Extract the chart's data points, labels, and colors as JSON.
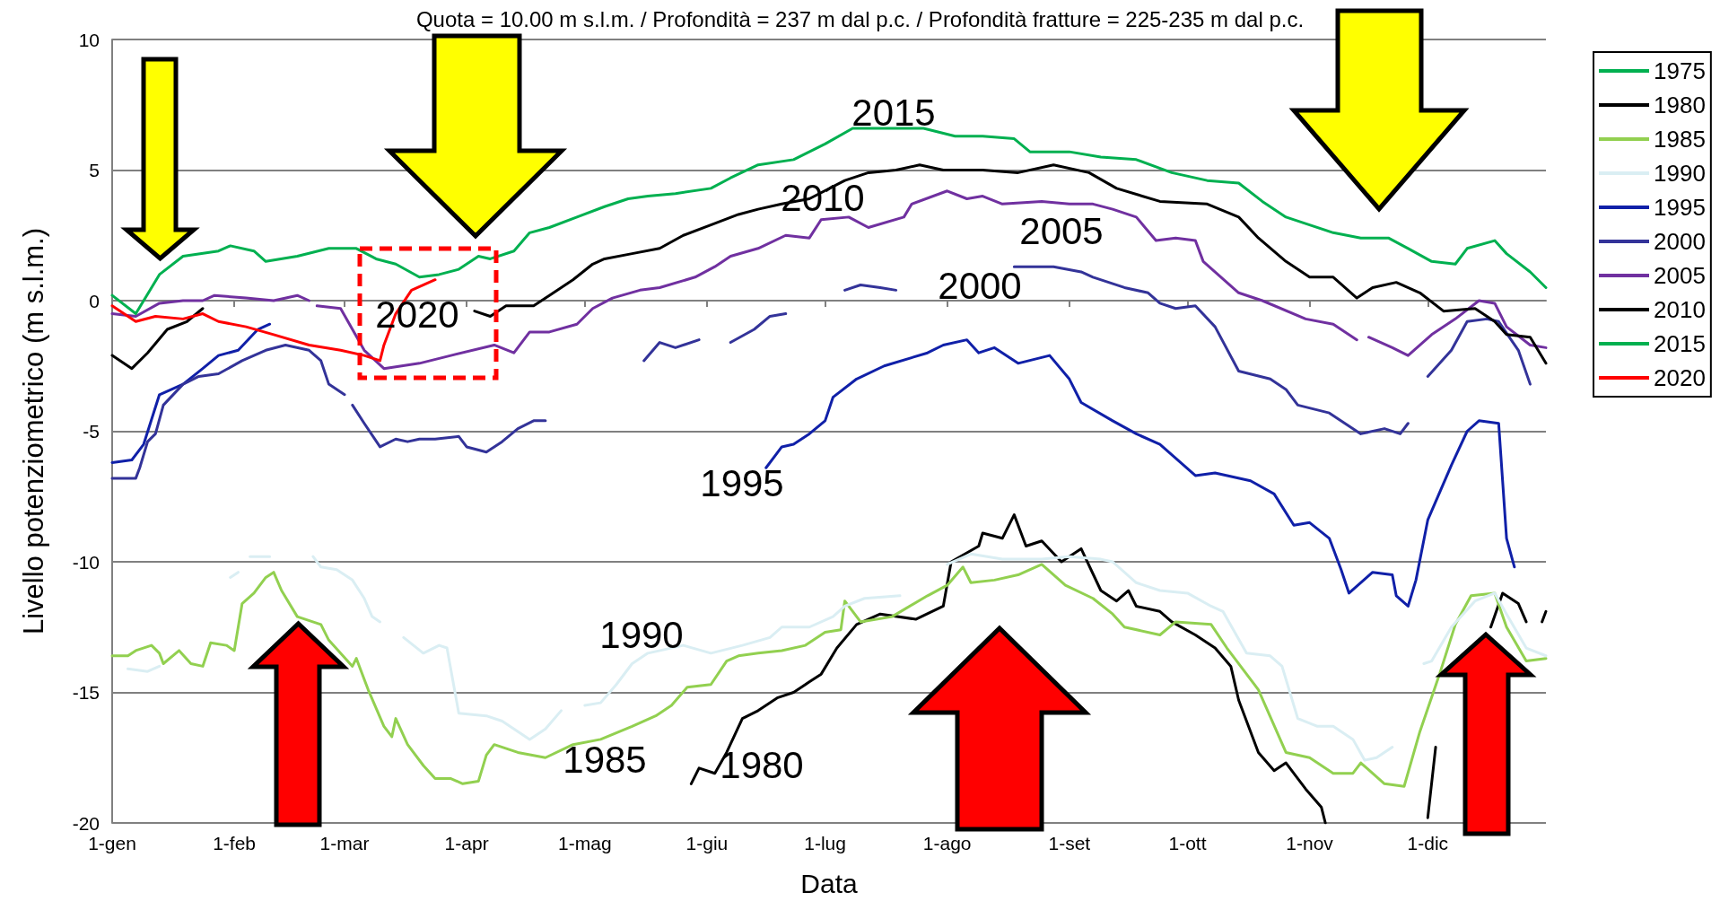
{
  "chart_data": {
    "type": "line",
    "title": "Quota = 10.00 m s.l.m. / Profondità = 237 m dal p.c. / Profondità fratture = 225-235 m dal p.c.",
    "xlabel": "Data",
    "ylabel": "Livello potenziometrico (m s.l.m.)",
    "xlim": [
      "--01-01",
      "--12-31"
    ],
    "xticks": [
      {
        "value": "--01-01",
        "label": "1-gen"
      },
      {
        "value": "--02-01",
        "label": "1-feb"
      },
      {
        "value": "--03-01",
        "label": "1-mar"
      },
      {
        "value": "--04-01",
        "label": "1-apr"
      },
      {
        "value": "--05-01",
        "label": "1-mag"
      },
      {
        "value": "--06-01",
        "label": "1-giu"
      },
      {
        "value": "--07-01",
        "label": "1-lug"
      },
      {
        "value": "--08-01",
        "label": "1-ago"
      },
      {
        "value": "--09-01",
        "label": "1-set"
      },
      {
        "value": "--10-01",
        "label": "1-ott"
      },
      {
        "value": "--11-01",
        "label": "1-nov"
      },
      {
        "value": "--12-01",
        "label": "1-dic"
      }
    ],
    "ylim": [
      -20,
      10
    ],
    "yticks": [
      -20,
      -15,
      -10,
      -5,
      0,
      5,
      10
    ],
    "grid": "y",
    "legend": "right",
    "series": [
      {
        "name": "1975",
        "color": "#00b050"
      },
      {
        "name": "1980",
        "color": "#000000",
        "x": [
          "--05-28",
          "--05-30",
          "--06-03",
          "--06-06",
          "--06-10",
          "--06-14",
          "--06-19",
          "--06-23",
          "--06-27",
          "--06-30",
          "--07-04",
          "--07-09",
          "--07-15",
          "--07-24",
          "--07-31",
          "--08-02",
          "--08-09",
          "--08-10",
          "--08-15",
          "--08-18",
          "--08-21",
          "--08-25",
          "--08-30",
          "--09-04",
          "--09-09",
          "--09-13",
          "--09-16",
          "--09-18",
          "--09-24",
          "--09-27",
          "--10-03",
          "--10-08",
          "--10-12",
          "--10-14",
          "--10-19",
          "--10-23",
          "--10-26",
          "--10-31",
          "--11-04",
          "--11-05",
          "--11-17",
          "--12-01",
          "--12-03",
          "--12-07",
          "--12-17",
          "--12-20",
          "--12-24",
          "--12-26",
          "--12-28",
          "--12-30",
          "--12-31"
        ],
        "values": [
          -18.5,
          -17.9,
          -18.1,
          -17.3,
          -16.0,
          -15.7,
          -15.2,
          -15.0,
          -14.6,
          -14.3,
          -13.3,
          -12.4,
          -12.0,
          -12.2,
          -11.7,
          -10.0,
          -9.4,
          -8.9,
          -9.1,
          -8.2,
          -9.4,
          -9.2,
          -10.0,
          -9.5,
          -11.1,
          -11.5,
          -11.1,
          -11.7,
          -11.9,
          -12.3,
          -12.8,
          -13.3,
          -14.0,
          -15.3,
          -17.3,
          -18.0,
          -17.7,
          -18.7,
          -19.4,
          -20.0,
          null,
          -19.8,
          -17.1,
          null,
          -12.5,
          -11.2,
          -11.6,
          -12.3,
          null,
          -12.3,
          -11.9
        ]
      },
      {
        "name": "1985",
        "color": "#92d050",
        "x": [
          "--01-01",
          "--01-05",
          "--01-07",
          "--01-11",
          "--01-13",
          "--01-14",
          "--01-18",
          "--01-21",
          "--01-24",
          "--01-26",
          "--01-30",
          "--02-01",
          "--02-03",
          "--02-06",
          "--02-09",
          "--02-11",
          "--02-13",
          "--02-17",
          "--02-23",
          "--02-25",
          "--03-03",
          "--03-04",
          "--03-07",
          "--03-11",
          "--03-13",
          "--03-14",
          "--03-17",
          "--03-21",
          "--03-24",
          "--03-28",
          "--03-31",
          "--04-04",
          "--04-06",
          "--04-08",
          "--04-14",
          "--04-21",
          "--04-28",
          "--05-05",
          "--05-13",
          "--05-19",
          "--05-23",
          "--05-27",
          "--06-02",
          "--06-06",
          "--06-09",
          "--06-14",
          "--06-20",
          "--06-26",
          "--07-01",
          "--07-05",
          "--07-06",
          "--07-10",
          "--07-18",
          "--07-27",
          "--08-01",
          "--08-05",
          "--08-07",
          "--08-13",
          "--08-19",
          "--08-25",
          "--08-31",
          "--09-07",
          "--09-12",
          "--09-15",
          "--09-24",
          "--09-28",
          "--10-07",
          "--10-11",
          "--10-19",
          "--10-26",
          "--11-01",
          "--11-07",
          "--11-12",
          "--11-14",
          "--11-20",
          "--11-25",
          "--11-29",
          "--12-04",
          "--12-08",
          "--12-12",
          "--12-18",
          "--12-21",
          "--12-26",
          "--12-31"
        ],
        "values": [
          -13.6,
          -13.6,
          -13.4,
          -13.2,
          -13.5,
          -13.9,
          -13.4,
          -13.9,
          -14.0,
          -13.1,
          -13.2,
          -13.4,
          -11.6,
          -11.2,
          -10.6,
          -10.4,
          -11.1,
          -12.1,
          -12.4,
          -13.0,
          -14.0,
          -13.7,
          -14.9,
          -16.3,
          -16.7,
          -16.0,
          -17.0,
          -17.8,
          -18.3,
          -18.3,
          -18.5,
          -18.4,
          -17.4,
          -17.0,
          -17.3,
          -17.5,
          -17.0,
          -16.8,
          -16.3,
          -15.9,
          -15.5,
          -14.8,
          -14.7,
          -13.8,
          -13.6,
          -13.5,
          -13.4,
          -13.2,
          -12.7,
          -12.6,
          -11.5,
          -12.3,
          -12.1,
          -11.3,
          -10.9,
          -10.2,
          -10.8,
          -10.7,
          -10.5,
          -10.1,
          -10.9,
          -11.4,
          -12.0,
          -12.5,
          -12.8,
          -12.3,
          -12.4,
          -13.3,
          -14.9,
          -17.3,
          -17.5,
          -18.1,
          -18.1,
          -17.7,
          -18.5,
          -18.6,
          -16.5,
          -14.3,
          -12.4,
          -11.3,
          -11.2,
          -12.5,
          -13.8,
          -13.7
        ]
      },
      {
        "name": "1990",
        "color": "#daeef3",
        "x": [
          "--01-05",
          "--01-10",
          "--01-13",
          "--01-14",
          "--01-31",
          "--02-02",
          "--02-03",
          "--02-05",
          "--02-10",
          "--02-11",
          "--02-21",
          "--02-23",
          "--02-27",
          "--03-03",
          "--03-06",
          "--03-08",
          "--03-10",
          "--03-11",
          "--03-16",
          "--03-21",
          "--03-25",
          "--03-27",
          "--03-30",
          "--04-06",
          "--04-10",
          "--04-13",
          "--04-17",
          "--04-21",
          "--04-25",
          "--04-28",
          "--05-01",
          "--05-05",
          "--05-09",
          "--05-13",
          "--05-17",
          "--05-26",
          "--06-02",
          "--06-10",
          "--06-17",
          "--06-20",
          "--06-27",
          "--07-03",
          "--07-06",
          "--07-11",
          "--07-20",
          "--07-25",
          "--08-01",
          "--08-07",
          "--08-15",
          "--08-25",
          "--09-01",
          "--09-09",
          "--09-12",
          "--09-18",
          "--09-24",
          "--10-01",
          "--10-07",
          "--10-10",
          "--10-16",
          "--10-22",
          "--10-25",
          "--10-29",
          "--11-03",
          "--11-07",
          "--11-12",
          "--11-15",
          "--11-18",
          "--11-22",
          "--11-23",
          "--11-30",
          "--12-02",
          "--12-07",
          "--12-13",
          "--12-18",
          "--12-21",
          "--12-26",
          "--12-31"
        ],
        "values": [
          -14.1,
          -14.2,
          -14.0,
          null,
          -10.6,
          -10.4,
          null,
          -9.8,
          -9.8,
          null,
          -9.8,
          -10.2,
          -10.3,
          -10.7,
          -11.4,
          -12.1,
          -12.3,
          null,
          -12.9,
          -13.5,
          -13.2,
          -13.3,
          -15.8,
          -15.9,
          -16.1,
          -16.4,
          -16.8,
          -16.4,
          -15.7,
          null,
          -15.5,
          -15.4,
          -14.7,
          -13.9,
          -13.5,
          -13.2,
          -13.5,
          -13.2,
          -12.9,
          -12.5,
          -12.5,
          -12.1,
          -11.7,
          -11.4,
          -11.3,
          null,
          -10.1,
          -9.7,
          -9.9,
          -9.9,
          -9.8,
          -9.9,
          -10.0,
          -10.8,
          -11.1,
          -11.2,
          -11.7,
          -11.9,
          -13.5,
          -13.6,
          -14.0,
          -16.0,
          -16.3,
          -16.3,
          -16.8,
          -17.6,
          -17.5,
          -17.1,
          null,
          -13.9,
          -13.8,
          -12.5,
          -11.5,
          -11.2,
          -12.0,
          -13.3,
          -13.6
        ]
      },
      {
        "name": "1995",
        "color": "#1020a8",
        "x": [
          "--01-01",
          "--01-06",
          "--01-09",
          "--01-13",
          "--01-19",
          "--01-24",
          "--01-28",
          "--02-02",
          "--02-07",
          "--02-10",
          "--02-11",
          "--06-16",
          "--06-20",
          "--06-23",
          "--06-27",
          "--07-01",
          "--07-03",
          "--07-09",
          "--07-16",
          "--07-27",
          "--07-31",
          "--08-06",
          "--08-09",
          "--08-13",
          "--08-19",
          "--08-27",
          "--09-01",
          "--09-04",
          "--09-12",
          "--09-18",
          "--09-24",
          "--10-03",
          "--10-08",
          "--10-17",
          "--10-23",
          "--10-28",
          "--11-01",
          "--11-06",
          "--11-09",
          "--11-11",
          "--11-17",
          "--11-22",
          "--11-23",
          "--11-26",
          "--11-28",
          "--12-01",
          "--12-07",
          "--12-11",
          "--12-14",
          "--12-19",
          "--12-20",
          "--12-21",
          "--12-23"
        ],
        "values": [
          -6.2,
          -6.1,
          -5.5,
          -3.6,
          -3.2,
          -2.6,
          -2.1,
          -1.9,
          -1.1,
          -0.9,
          null,
          -6.4,
          -5.6,
          -5.5,
          -5.1,
          -4.6,
          -3.7,
          -3.0,
          -2.5,
          -2.0,
          -1.7,
          -1.5,
          -2.0,
          -1.8,
          -2.4,
          -2.1,
          -3.0,
          -3.9,
          -4.6,
          -5.1,
          -5.5,
          -6.7,
          -6.6,
          -6.9,
          -7.4,
          -8.6,
          -8.5,
          -9.1,
          -10.3,
          -11.2,
          -10.4,
          -10.5,
          -11.3,
          -11.7,
          -10.7,
          -8.4,
          -6.3,
          -5.0,
          -4.6,
          -4.7,
          -6.9,
          -9.1,
          -10.2
        ]
      },
      {
        "name": "2000",
        "color": "#333399",
        "x": [
          "--01-01",
          "--01-07",
          "--01-08",
          "--01-10",
          "--01-12",
          "--01-14",
          "--01-19",
          "--01-23",
          "--01-28",
          "--02-03",
          "--02-09",
          "--02-14",
          "--02-20",
          "--02-23",
          "--02-25",
          "--03-01",
          "--03-02",
          "--03-03",
          "--03-06",
          "--03-10",
          "--03-14",
          "--03-17",
          "--03-20",
          "--03-24",
          "--03-30",
          "--04-01",
          "--04-06",
          "--04-10",
          "--04-14",
          "--04-18",
          "--04-21",
          "--04-22",
          "--05-16",
          "--05-20",
          "--05-24",
          "--05-30",
          "--05-31",
          "--06-07",
          "--06-13",
          "--06-17",
          "--06-21",
          "--06-22",
          "--07-06",
          "--07-10",
          "--07-15",
          "--07-19",
          "--07-20",
          "--08-18",
          "--08-28",
          "--09-04",
          "--09-07",
          "--09-15",
          "--09-21",
          "--09-24",
          "--09-28",
          "--10-03",
          "--10-08",
          "--10-14",
          "--10-22",
          "--10-26",
          "--10-29",
          "--11-06",
          "--11-14",
          "--11-20",
          "--11-24",
          "--11-26",
          "--11-27",
          "--12-01",
          "--12-07",
          "--12-11",
          "--12-16",
          "--12-19",
          "--12-24",
          "--12-27"
        ],
        "values": [
          -6.8,
          -6.8,
          -6.4,
          -5.4,
          -5.1,
          -4.0,
          -3.2,
          -2.9,
          -2.8,
          -2.3,
          -1.9,
          -1.7,
          -1.9,
          -2.3,
          -3.2,
          -3.6,
          null,
          -4.0,
          -4.7,
          -5.6,
          -5.3,
          -5.4,
          -5.3,
          -5.3,
          -5.2,
          -5.6,
          -5.8,
          -5.4,
          -4.9,
          -4.6,
          -4.6,
          null,
          -2.3,
          -1.6,
          -1.8,
          -1.5,
          null,
          -1.6,
          -1.1,
          -0.6,
          -0.5,
          null,
          0.4,
          0.6,
          0.5,
          0.4,
          null,
          1.3,
          1.3,
          1.1,
          0.9,
          0.5,
          0.3,
          -0.1,
          -0.3,
          -0.2,
          -1.0,
          -2.7,
          -3.0,
          -3.4,
          -4.0,
          -4.3,
          -5.1,
          -4.9,
          -5.1,
          -4.7,
          null,
          -2.9,
          -1.9,
          -0.8,
          -0.7,
          -0.8,
          -1.9,
          -3.2
        ]
      },
      {
        "name": "2005",
        "color": "#7030a0",
        "x": [
          "--01-01",
          "--01-07",
          "--01-13",
          "--01-19",
          "--01-24",
          "--01-27",
          "--02-04",
          "--02-11",
          "--02-17",
          "--02-20",
          "--02-21",
          "--02-22",
          "--02-28",
          "--03-06",
          "--03-11",
          "--03-20",
          "--03-28",
          "--04-08",
          "--04-13",
          "--04-17",
          "--04-22",
          "--04-29",
          "--05-03",
          "--05-08",
          "--05-15",
          "--05-20",
          "--05-29",
          "--06-03",
          "--06-07",
          "--06-14",
          "--06-21",
          "--06-27",
          "--06-30",
          "--07-07",
          "--07-12",
          "--07-21",
          "--07-23",
          "--08-01",
          "--08-06",
          "--08-10",
          "--08-15",
          "--08-25",
          "--09-01",
          "--09-07",
          "--09-12",
          "--09-18",
          "--09-23",
          "--09-28",
          "--10-03",
          "--10-05",
          "--10-14",
          "--10-20",
          "--10-31",
          "--11-07",
          "--11-13",
          "--11-14",
          "--11-16",
          "--11-22",
          "--11-26",
          "--12-02",
          "--12-08",
          "--12-14",
          "--12-18",
          "--12-21",
          "--12-27",
          "--12-31"
        ],
        "values": [
          -0.5,
          -0.6,
          -0.1,
          0.0,
          0.0,
          0.2,
          0.1,
          0.0,
          0.2,
          0.0,
          null,
          -0.2,
          -0.3,
          -1.9,
          -2.6,
          -2.4,
          -2.1,
          -1.7,
          -2.0,
          -1.2,
          -1.2,
          -0.9,
          -0.3,
          0.1,
          0.4,
          0.5,
          0.9,
          1.3,
          1.7,
          2.0,
          2.5,
          2.4,
          3.1,
          3.2,
          2.8,
          3.2,
          3.7,
          4.2,
          3.9,
          4.0,
          3.7,
          3.8,
          3.7,
          3.7,
          3.5,
          3.2,
          2.3,
          2.4,
          2.3,
          1.5,
          0.3,
          0.0,
          -0.7,
          -0.9,
          -1.5,
          null,
          -1.4,
          -1.8,
          -2.1,
          -1.3,
          -0.7,
          0.0,
          -0.1,
          -1.0,
          -1.7,
          -1.8
        ]
      },
      {
        "name": "2010",
        "color": "#000000",
        "x": [
          "--01-01",
          "--01-06",
          "--01-10",
          "--01-15",
          "--01-20",
          "--01-24",
          "--02-27",
          "--04-03",
          "--04-07",
          "--04-11",
          "--04-18",
          "--04-22",
          "--04-28",
          "--05-03",
          "--05-06",
          "--05-13",
          "--05-20",
          "--05-26",
          "--06-02",
          "--06-09",
          "--06-14",
          "--06-20",
          "--06-27",
          "--07-06",
          "--07-12",
          "--07-19",
          "--07-25",
          "--07-31",
          "--08-10",
          "--08-19",
          "--08-28",
          "--09-06",
          "--09-13",
          "--09-24",
          "--10-06",
          "--10-14",
          "--10-19",
          "--10-26",
          "--11-01",
          "--11-07",
          "--11-13",
          "--11-17",
          "--11-23",
          "--11-29",
          "--12-05",
          "--12-13",
          "--12-18",
          "--12-21",
          "--12-27",
          "--12-31"
        ],
        "values": [
          -2.1,
          -2.6,
          -2.0,
          -1.1,
          -0.8,
          -0.3,
          null,
          -0.4,
          -0.6,
          -0.2,
          -0.2,
          0.2,
          0.8,
          1.4,
          1.6,
          1.8,
          2.0,
          2.5,
          2.9,
          3.3,
          3.5,
          3.7,
          3.9,
          4.6,
          4.9,
          5.0,
          5.2,
          5.0,
          5.0,
          4.9,
          5.2,
          4.9,
          4.3,
          3.8,
          3.7,
          3.2,
          2.4,
          1.5,
          0.9,
          0.9,
          0.1,
          0.5,
          0.7,
          0.3,
          -0.4,
          -0.3,
          -0.8,
          -1.3,
          -1.4,
          -2.4
        ]
      },
      {
        "name": "2015",
        "color": "#00b050",
        "x": [
          "--01-01",
          "--01-07",
          "--01-13",
          "--01-19",
          "--01-28",
          "--01-31",
          "--02-06",
          "--02-09",
          "--02-17",
          "--02-25",
          "--03-04",
          "--03-09",
          "--03-14",
          "--03-20",
          "--03-25",
          "--03-30",
          "--04-04",
          "--04-07",
          "--04-13",
          "--04-17",
          "--04-22",
          "--04-29",
          "--05-06",
          "--05-12",
          "--05-17",
          "--05-24",
          "--06-02",
          "--06-07",
          "--06-14",
          "--06-23",
          "--07-01",
          "--07-08",
          "--07-18",
          "--07-26",
          "--08-03",
          "--08-10",
          "--08-18",
          "--08-22",
          "--09-01",
          "--09-09",
          "--09-18",
          "--09-27",
          "--10-06",
          "--10-14",
          "--10-20",
          "--10-26",
          "--11-01",
          "--11-07",
          "--11-14",
          "--11-21",
          "--11-26",
          "--12-02",
          "--12-08",
          "--12-11",
          "--12-18",
          "--12-21",
          "--12-27",
          "--12-31"
        ],
        "values": [
          0.2,
          -0.5,
          1.0,
          1.7,
          1.9,
          2.1,
          1.9,
          1.5,
          1.7,
          2.0,
          2.0,
          1.6,
          1.4,
          0.9,
          1.0,
          1.2,
          1.7,
          1.6,
          1.9,
          2.6,
          2.8,
          3.2,
          3.6,
          3.9,
          4.0,
          4.1,
          4.3,
          4.7,
          5.2,
          5.4,
          6.0,
          6.6,
          6.6,
          6.6,
          6.3,
          6.3,
          6.2,
          5.7,
          5.7,
          5.5,
          5.4,
          4.9,
          4.6,
          4.5,
          3.8,
          3.2,
          2.9,
          2.6,
          2.4,
          2.4,
          2.0,
          1.5,
          1.4,
          2.0,
          2.3,
          1.8,
          1.1,
          0.5
        ]
      },
      {
        "name": "2020",
        "color": "#ff0000",
        "x": [
          "--01-01",
          "--01-07",
          "--01-12",
          "--01-19",
          "--01-24",
          "--01-28",
          "--02-04",
          "--02-11",
          "--02-20",
          "--02-28",
          "--03-06",
          "--03-10",
          "--03-11",
          "--03-14",
          "--03-18",
          "--03-24"
        ],
        "values": [
          -0.2,
          -0.8,
          -0.6,
          -0.7,
          -0.5,
          -0.8,
          -1.0,
          -1.3,
          -1.7,
          -1.9,
          -2.1,
          -2.3,
          -1.7,
          -0.5,
          0.4,
          0.8
        ]
      }
    ],
    "annotations": [
      "2015",
      "2010",
      "2005",
      "2000",
      "2020",
      "1995",
      "1990",
      "1985",
      "1980"
    ]
  }
}
